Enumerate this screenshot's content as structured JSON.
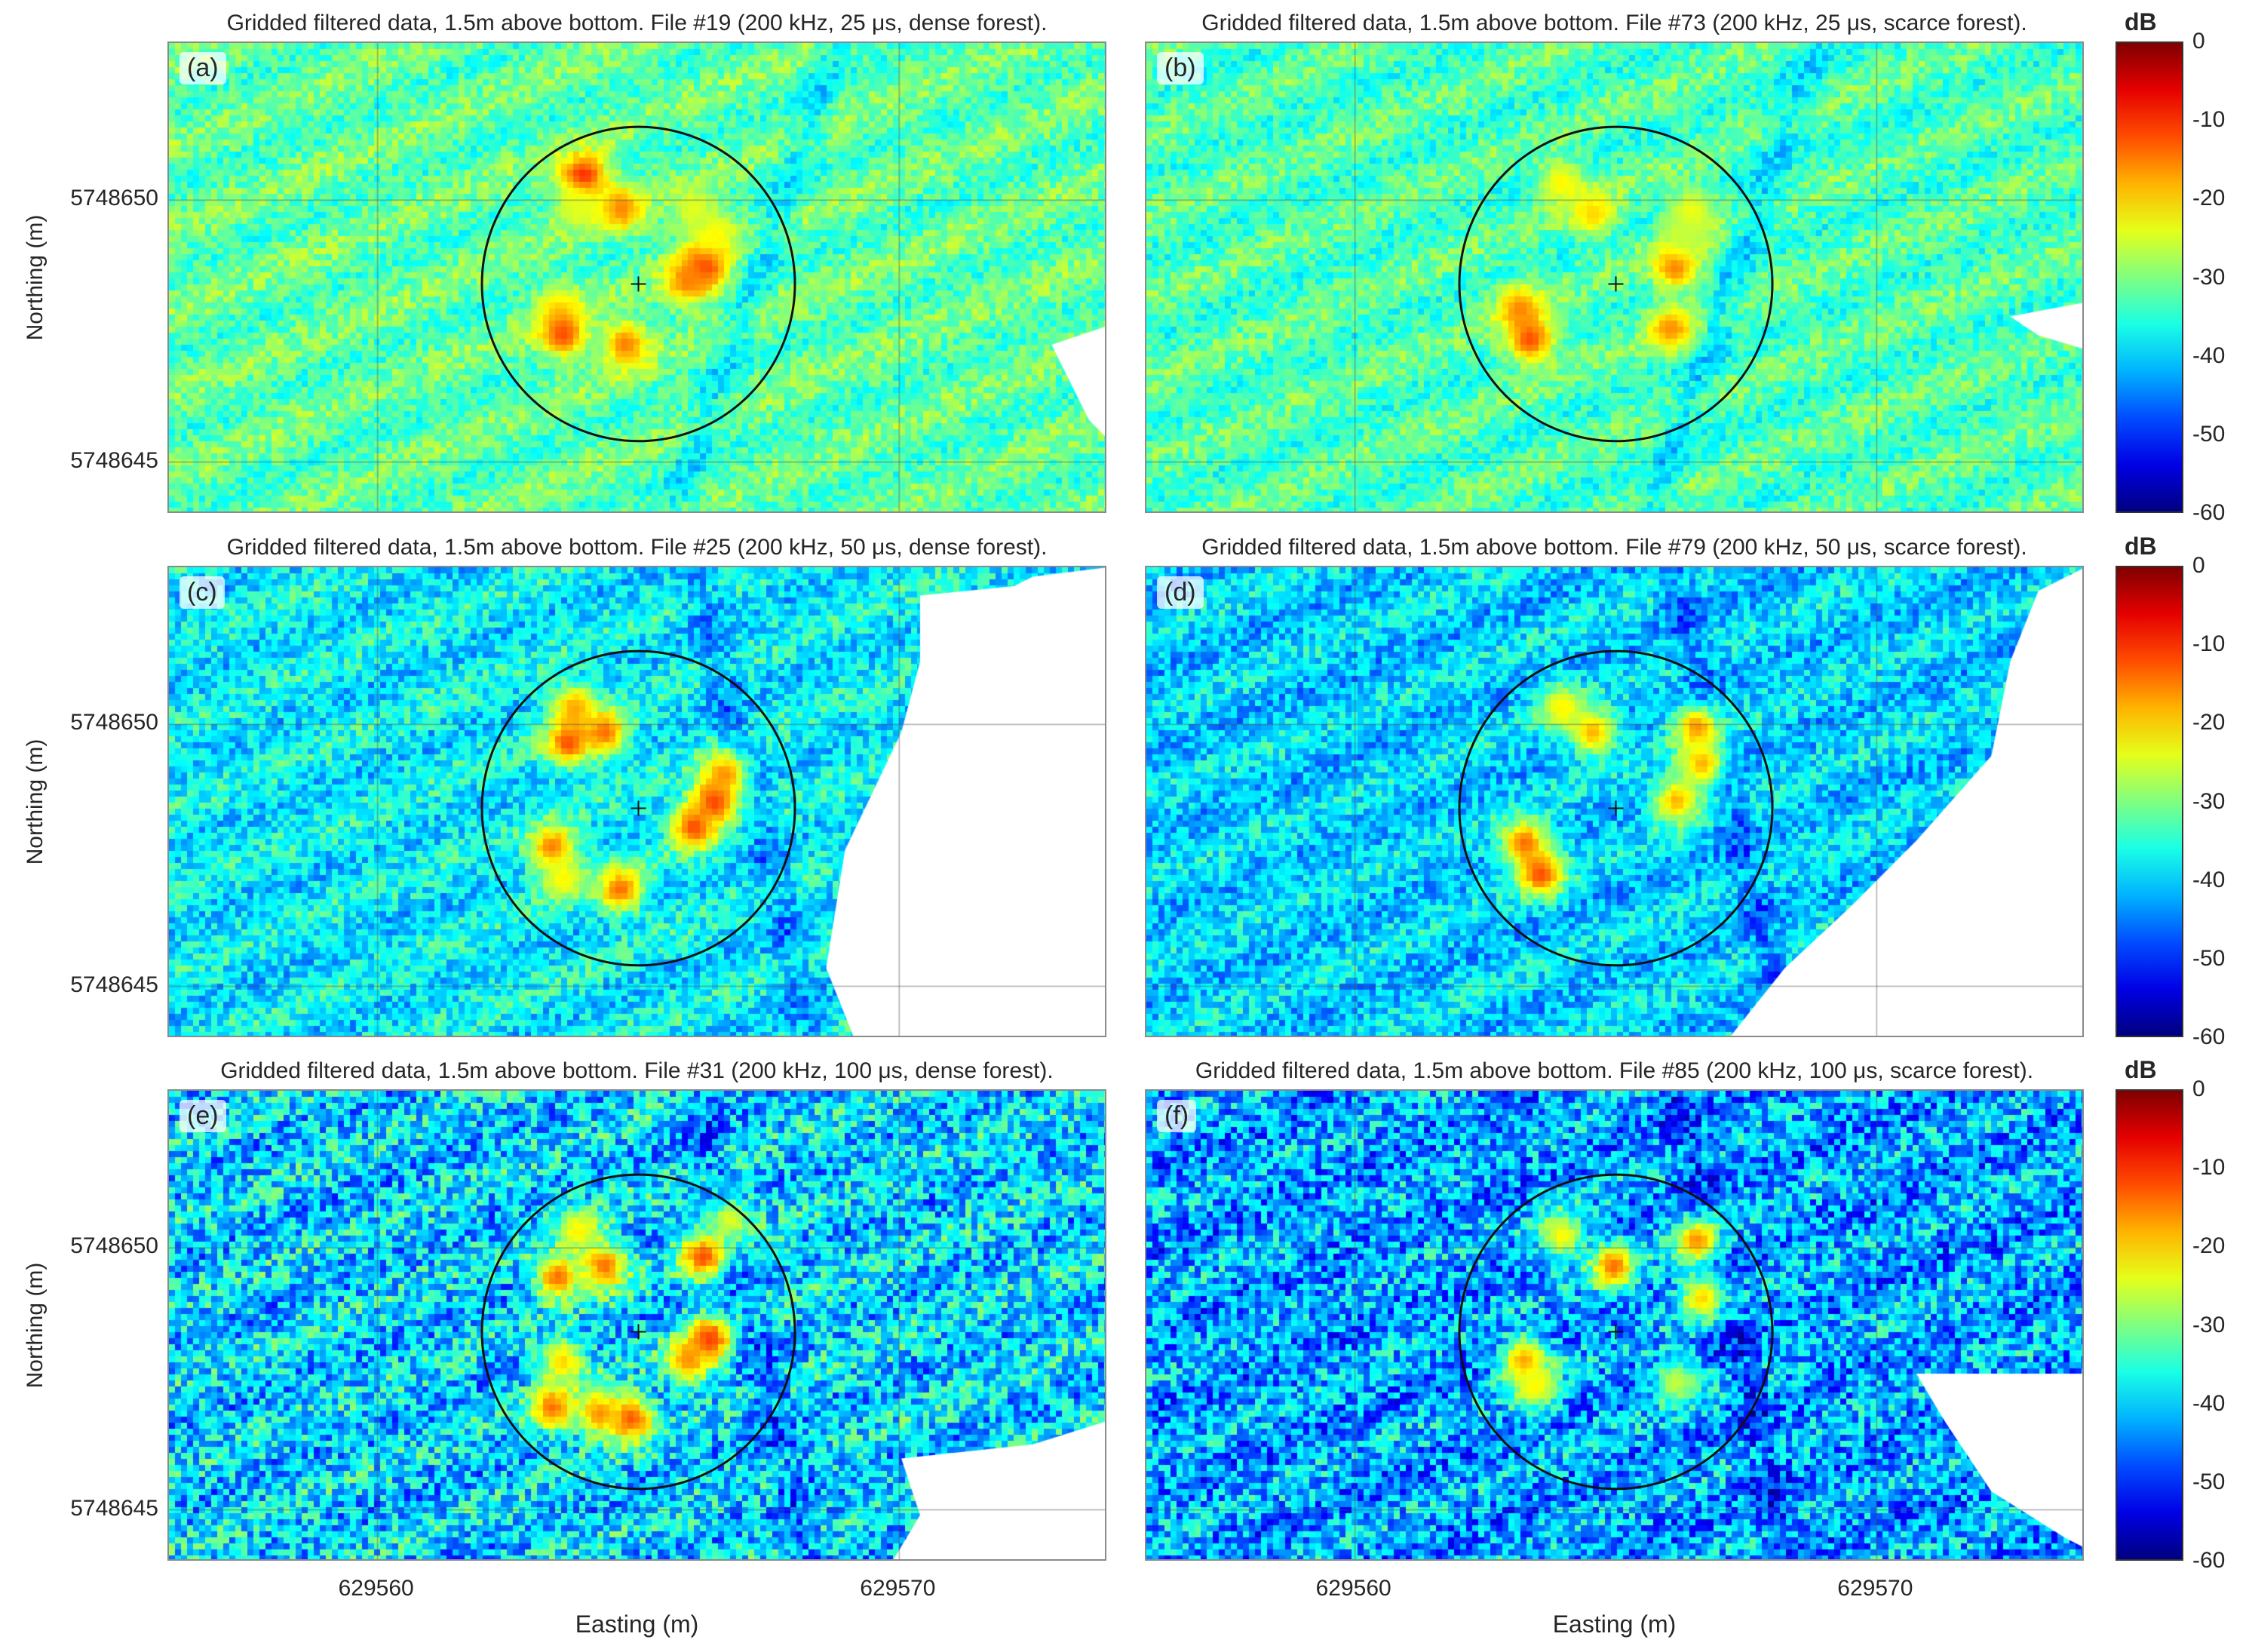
{
  "chart_data": {
    "type": "heatmap",
    "panels": [
      {
        "label": "(a)",
        "title": "Gridded filtered data, 1.5m above bottom. File #19 (200 kHz, 25 μs, dense forest).",
        "file": 19,
        "frequency_khz": 200,
        "pulse_us": 25,
        "forest": "dense",
        "background_db": -32,
        "blobs": [
          [
            629563.9,
            5748650.5,
            -8
          ],
          [
            629564.6,
            5748649.9,
            -15
          ],
          [
            629566.2,
            5748648.8,
            -8
          ],
          [
            629565.9,
            5748648.5,
            -15
          ],
          [
            629566.4,
            5748649.4,
            -22
          ],
          [
            629563.4,
            5748648.0,
            -22
          ],
          [
            629563.5,
            5748647.5,
            -12
          ],
          [
            629564.7,
            5748647.3,
            -15
          ],
          [
            629566.0,
            5748649.9,
            -24
          ],
          [
            629563.8,
            5748649.9,
            -24
          ]
        ]
      },
      {
        "label": "(b)",
        "title": "Gridded filtered data, 1.5m above bottom. File #73 (200 kHz, 25 μs, scarce forest).",
        "file": 73,
        "frequency_khz": 200,
        "pulse_us": 25,
        "forest": "scarce",
        "background_db": -33,
        "blobs": [
          [
            629563.9,
            5748650.4,
            -22
          ],
          [
            629564.5,
            5748649.8,
            -20
          ],
          [
            629566.4,
            5748649.8,
            -22
          ],
          [
            629566.1,
            5748648.8,
            -14
          ],
          [
            629563.1,
            5748648.0,
            -16
          ],
          [
            629563.3,
            5748647.4,
            -12
          ],
          [
            629566.0,
            5748647.6,
            -16
          ],
          [
            629566.3,
            5748649.4,
            -26
          ]
        ]
      },
      {
        "label": "(c)",
        "title": "Gridded filtered data, 1.5m above bottom. File #25 (200 kHz, 50 μs, dense forest).",
        "file": 25,
        "frequency_khz": 200,
        "pulse_us": 50,
        "forest": "dense",
        "background_db": -38,
        "blobs": [
          [
            629563.7,
            5748650.4,
            -18
          ],
          [
            629563.6,
            5748649.7,
            -12
          ],
          [
            629564.3,
            5748649.9,
            -14
          ],
          [
            629566.4,
            5748648.6,
            -10
          ],
          [
            629566.0,
            5748648.1,
            -12
          ],
          [
            629566.6,
            5748649.1,
            -16
          ],
          [
            629563.3,
            5748647.7,
            -14
          ],
          [
            629563.5,
            5748647.1,
            -22
          ],
          [
            629564.6,
            5748646.9,
            -14
          ]
        ]
      },
      {
        "label": "(d)",
        "title": "Gridded filtered data, 1.5m above bottom. File #79 (200 kHz, 50 μs, scarce forest).",
        "file": 79,
        "frequency_khz": 200,
        "pulse_us": 50,
        "forest": "scarce",
        "background_db": -40,
        "blobs": [
          [
            629563.9,
            5748650.4,
            -22
          ],
          [
            629564.5,
            5748649.9,
            -18
          ],
          [
            629566.5,
            5748650.0,
            -16
          ],
          [
            629566.6,
            5748649.3,
            -18
          ],
          [
            629566.1,
            5748648.6,
            -18
          ],
          [
            629563.2,
            5748647.8,
            -14
          ],
          [
            629563.5,
            5748647.2,
            -12
          ]
        ]
      },
      {
        "label": "(e)",
        "title": "Gridded filtered data, 1.5m above bottom. File #31 (200 kHz, 100 μs, dense forest).",
        "file": 31,
        "frequency_khz": 200,
        "pulse_us": 100,
        "forest": "dense",
        "background_db": -40,
        "blobs": [
          [
            629563.8,
            5748650.4,
            -22
          ],
          [
            629563.4,
            5748649.5,
            -14
          ],
          [
            629564.3,
            5748649.7,
            -14
          ],
          [
            629566.2,
            5748649.9,
            -12
          ],
          [
            629566.3,
            5748648.3,
            -10
          ],
          [
            629565.9,
            5748647.9,
            -16
          ],
          [
            629563.5,
            5748647.9,
            -20
          ],
          [
            629563.3,
            5748647.0,
            -14
          ],
          [
            629564.8,
            5748646.8,
            -12
          ],
          [
            629564.2,
            5748646.9,
            -16
          ],
          [
            629566.7,
            5748650.6,
            -24
          ]
        ]
      },
      {
        "label": "(f)",
        "title": "Gridded filtered data, 1.5m above bottom. File #85 (200 kHz, 100 μs, scarce forest).",
        "file": 85,
        "frequency_khz": 200,
        "pulse_us": 100,
        "forest": "scarce",
        "background_db": -43,
        "blobs": [
          [
            629563.9,
            5748650.3,
            -22
          ],
          [
            629564.9,
            5748649.7,
            -14
          ],
          [
            629566.5,
            5748650.2,
            -16
          ],
          [
            629566.6,
            5748649.1,
            -20
          ],
          [
            629563.2,
            5748647.9,
            -16
          ],
          [
            629563.4,
            5748647.4,
            -22
          ],
          [
            629566.1,
            5748647.5,
            -26
          ]
        ]
      }
    ],
    "circle": {
      "center_easting": 629565,
      "center_northing": 5748648.4,
      "radius_m": 3
    },
    "xlabel": "Easting (m)",
    "ylabel": "Northing (m)",
    "x_ticks": [
      629560,
      629570
    ],
    "y_ticks": [
      5748650,
      5748645
    ],
    "xlim": [
      629556,
      629574
    ],
    "ylim": [
      5748644,
      5748653
    ],
    "colorbar": {
      "label": "dB",
      "ticks": [
        0,
        -10,
        -20,
        -30,
        -40,
        -50,
        -60
      ],
      "range": [
        -60,
        0
      ],
      "colormap": "jet"
    },
    "grid": true
  }
}
